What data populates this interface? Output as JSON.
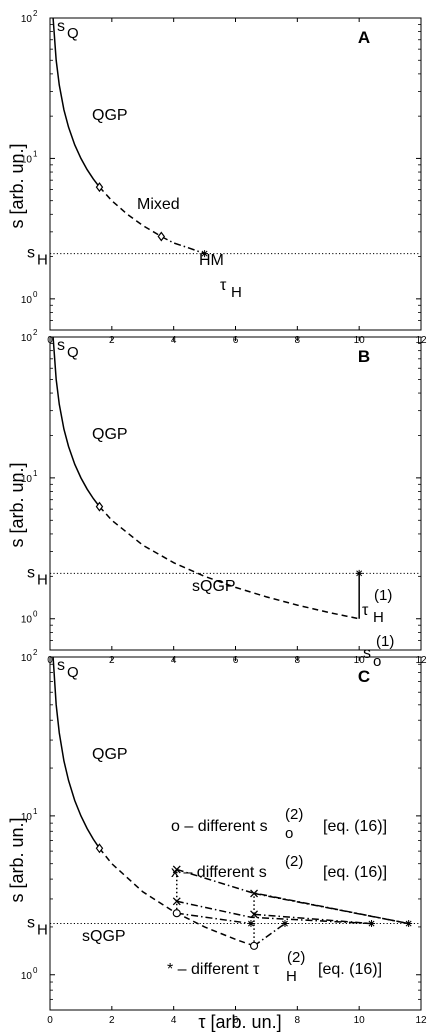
{
  "figure": {
    "ylabel": "s [arb. un.]",
    "xlabel": "τ [arb. un.]"
  },
  "chart_data": [
    {
      "type": "line",
      "panel": "A",
      "scale_y": "log",
      "xlim": [
        0,
        12
      ],
      "ylim": [
        0.6,
        100
      ],
      "xticks": [
        "0",
        "2",
        "4",
        "6",
        "8",
        "10",
        "12"
      ],
      "yticks": [
        {
          "base": "10",
          "exp": "0"
        },
        {
          "base": "10",
          "exp": "1"
        },
        {
          "base": "10",
          "exp": "2"
        }
      ],
      "reference_line": {
        "y": 2.1,
        "style": "dotted"
      },
      "series": [
        {
          "segment": "solid",
          "x": [
            0.1,
            0.2,
            0.3,
            0.45,
            0.6,
            0.8,
            1.0,
            1.2,
            1.4,
            1.6
          ],
          "y": [
            100,
            50,
            33.3,
            22.2,
            16.7,
            12.5,
            10,
            8.33,
            7.14,
            6.25
          ]
        },
        {
          "segment": "dashed",
          "x": [
            1.6,
            2.0,
            2.5,
            3.0,
            3.6
          ],
          "y": [
            6.25,
            5.0,
            4.0,
            3.33,
            2.78
          ]
        },
        {
          "segment": "dashdot",
          "x": [
            3.6,
            4.0,
            4.5,
            5.0
          ],
          "y": [
            2.78,
            2.5,
            2.3,
            2.1
          ]
        }
      ],
      "markers": [
        {
          "shape": "diamond",
          "x": 1.6,
          "y": 6.25
        },
        {
          "shape": "diamond",
          "x": 3.6,
          "y": 2.78
        },
        {
          "shape": "star",
          "x": 5.0,
          "y": 2.1
        }
      ],
      "annotations": {
        "letter": "A",
        "sq": "s",
        "sq_sub": "Q",
        "qgp": "QGP",
        "mixed": "Mixed",
        "hm": "HM",
        "sh": "s",
        "sh_sub": "H",
        "tauh": "τ",
        "tauh_sub": "H"
      }
    },
    {
      "type": "line",
      "panel": "B",
      "scale_y": "log",
      "xlim": [
        0,
        12
      ],
      "ylim": [
        0.6,
        100
      ],
      "xticks": [
        "0",
        "2",
        "4",
        "6",
        "8",
        "10",
        "12"
      ],
      "yticks": [
        {
          "base": "10",
          "exp": "0"
        },
        {
          "base": "10",
          "exp": "1"
        },
        {
          "base": "10",
          "exp": "2"
        }
      ],
      "reference_line": {
        "y": 2.1,
        "style": "dotted"
      },
      "series": [
        {
          "segment": "solid",
          "x": [
            0.1,
            0.2,
            0.3,
            0.45,
            0.6,
            0.8,
            1.0,
            1.2,
            1.4,
            1.6
          ],
          "y": [
            100,
            50,
            33.3,
            22.2,
            16.7,
            12.5,
            10,
            8.33,
            7.14,
            6.25
          ]
        },
        {
          "segment": "dashed",
          "x": [
            1.6,
            2,
            3,
            4,
            5,
            6,
            7,
            8,
            9,
            10
          ],
          "y": [
            6.25,
            5.0,
            3.33,
            2.5,
            2.0,
            1.67,
            1.43,
            1.25,
            1.11,
            1.0
          ]
        },
        {
          "segment": "solid",
          "x": [
            10,
            10
          ],
          "y": [
            1.0,
            2.1
          ]
        }
      ],
      "markers": [
        {
          "shape": "diamond",
          "x": 1.6,
          "y": 6.25
        },
        {
          "shape": "star",
          "x": 10,
          "y": 2.1
        }
      ],
      "annotations": {
        "letter": "B",
        "sq": "s",
        "sq_sub": "Q",
        "qgp": "QGP",
        "sqgp": "sQGP",
        "sh": "s",
        "sh_sub": "H",
        "tauh": "τ",
        "tauh_sub": "H",
        "tauh_sup": "(1)",
        "so": "s",
        "so_sub": "o",
        "so_sup": "(1)"
      }
    },
    {
      "type": "line",
      "panel": "C",
      "scale_y": "log",
      "xlim": [
        0,
        12
      ],
      "ylim": [
        0.6,
        100
      ],
      "xticks": [
        "0",
        "2",
        "4",
        "6",
        "8",
        "10",
        "12"
      ],
      "yticks": [
        {
          "base": "10",
          "exp": "0"
        },
        {
          "base": "10",
          "exp": "1"
        },
        {
          "base": "10",
          "exp": "2"
        }
      ],
      "reference_line": {
        "y": 2.1,
        "style": "dotted"
      },
      "series": [
        {
          "segment": "solid",
          "x": [
            0.1,
            0.2,
            0.3,
            0.45,
            0.6,
            0.8,
            1.0,
            1.2,
            1.4,
            1.6
          ],
          "y": [
            100,
            50,
            33.3,
            22.2,
            16.7,
            12.5,
            10,
            8.33,
            7.14,
            6.25
          ]
        },
        {
          "segment": "dashed",
          "x": [
            1.6,
            2,
            3,
            4,
            5,
            6,
            6.6
          ],
          "y": [
            6.25,
            5.0,
            3.33,
            2.5,
            2.0,
            1.67,
            1.52
          ]
        },
        {
          "segment": "dotted",
          "x": [
            4.1,
            4.1
          ],
          "y": [
            2.44,
            4.6
          ]
        },
        {
          "segment": "dotted",
          "x": [
            6.6,
            6.6
          ],
          "y": [
            1.52,
            3.25
          ]
        },
        {
          "segment": "dashdot",
          "x": [
            4.1,
            6.5,
            11.6
          ],
          "y": [
            4.6,
            3.3,
            2.1
          ]
        },
        {
          "segment": "dashdot",
          "x": [
            4.1,
            6.5,
            10.4
          ],
          "y": [
            2.9,
            2.3,
            2.1
          ]
        },
        {
          "segment": "dashdot",
          "x": [
            4.1,
            6.5
          ],
          "y": [
            2.44,
            2.1
          ]
        },
        {
          "segment": "dashdot",
          "x": [
            6.6,
            11.6
          ],
          "y": [
            3.25,
            2.1
          ]
        },
        {
          "segment": "dashdot",
          "x": [
            6.6,
            10.4
          ],
          "y": [
            2.4,
            2.1
          ]
        },
        {
          "segment": "dashdot",
          "x": [
            6.6,
            7.6
          ],
          "y": [
            1.52,
            2.1
          ]
        }
      ],
      "markers": [
        {
          "shape": "diamond",
          "x": 1.6,
          "y": 6.25
        },
        {
          "shape": "circle",
          "x": 4.1,
          "y": 2.44
        },
        {
          "shape": "circle",
          "x": 6.6,
          "y": 1.52
        },
        {
          "shape": "cross",
          "x": 4.1,
          "y": 2.9
        },
        {
          "shape": "cross",
          "x": 4.1,
          "y": 4.6
        },
        {
          "shape": "cross",
          "x": 6.6,
          "y": 2.4
        },
        {
          "shape": "cross",
          "x": 6.6,
          "y": 3.25
        },
        {
          "shape": "star",
          "x": 6.5,
          "y": 2.1
        },
        {
          "shape": "star",
          "x": 7.6,
          "y": 2.1
        },
        {
          "shape": "star",
          "x": 10.4,
          "y": 2.1
        },
        {
          "shape": "star",
          "x": 11.6,
          "y": 2.1
        }
      ],
      "annotations": {
        "letter": "C",
        "sq": "s",
        "sq_sub": "Q",
        "qgp": "QGP",
        "sqgp": "sQGP",
        "sh": "s",
        "sh_sub": "H",
        "legend_o_pre": "o – different s",
        "legend_o_sub": "o",
        "legend_o_sup": "(2)",
        "legend_o_eq": "[eq. (16)]",
        "legend_x_pre": "x – different s",
        "legend_x_sup": "(2)",
        "legend_x_eq": "[eq. (16)]",
        "legend_s_pre": "* – different τ",
        "legend_s_sub": "H",
        "legend_s_sup": "(2)",
        "legend_s_eq": "[eq. (16)]"
      }
    }
  ]
}
